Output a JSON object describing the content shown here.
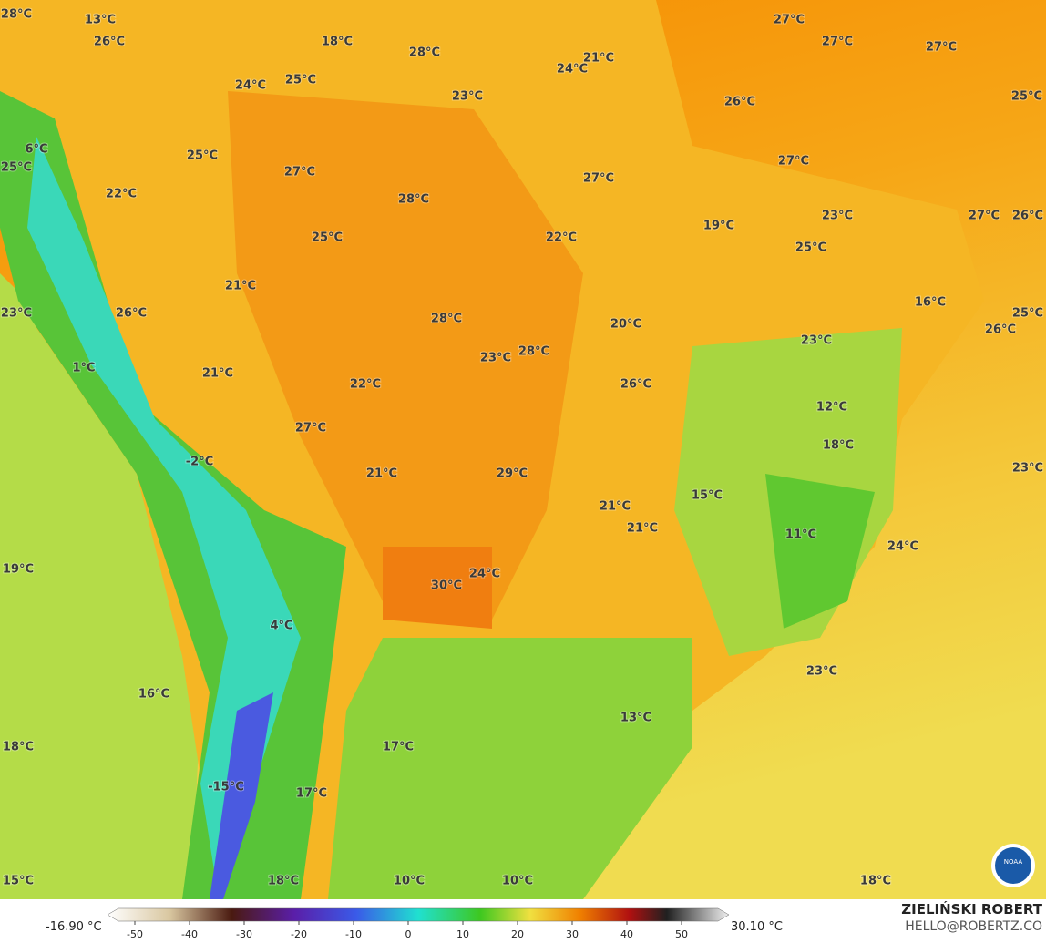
{
  "map": {
    "labels": [
      "28°C",
      "13°C",
      "26°C",
      "18°C",
      "28°C",
      "24°C",
      "21°C",
      "27°C",
      "27°C",
      "27°C",
      "25°C",
      "26°C",
      "24°C",
      "25°C",
      "23°C",
      "25°C",
      "6°C",
      "25°C",
      "22°C",
      "27°C",
      "28°C",
      "27°C",
      "27°C",
      "23°C",
      "27°C",
      "26°C",
      "19°C",
      "25°C",
      "22°C",
      "25°C",
      "21°C",
      "16°C",
      "23°C",
      "26°C",
      "28°C",
      "20°C",
      "25°C",
      "26°C",
      "23°C",
      "28°C",
      "23°C",
      "1°C",
      "21°C",
      "22°C",
      "26°C",
      "12°C",
      "18°C",
      "27°C",
      "21°C",
      "29°C",
      "23°C",
      "-2°C",
      "15°C",
      "21°C",
      "21°C",
      "11°C",
      "24°C",
      "19°C",
      "30°C",
      "24°C",
      "4°C",
      "23°C",
      "16°C",
      "13°C",
      "18°C",
      "17°C",
      "-15°C",
      "17°C",
      "15°C",
      "18°C",
      "10°C",
      "10°C",
      "18°C"
    ]
  },
  "colorbar": {
    "min_label": "-16.90 °C",
    "max_label": "30.10 °C",
    "ticks": [
      -50,
      -40,
      -30,
      -20,
      -10,
      0,
      10,
      20,
      30,
      40,
      50
    ]
  },
  "credits": {
    "name": "ZIELIŃSKI ROBERT",
    "contact": "HELLO@ROBERTZ.CO",
    "logo": "NOAA"
  }
}
